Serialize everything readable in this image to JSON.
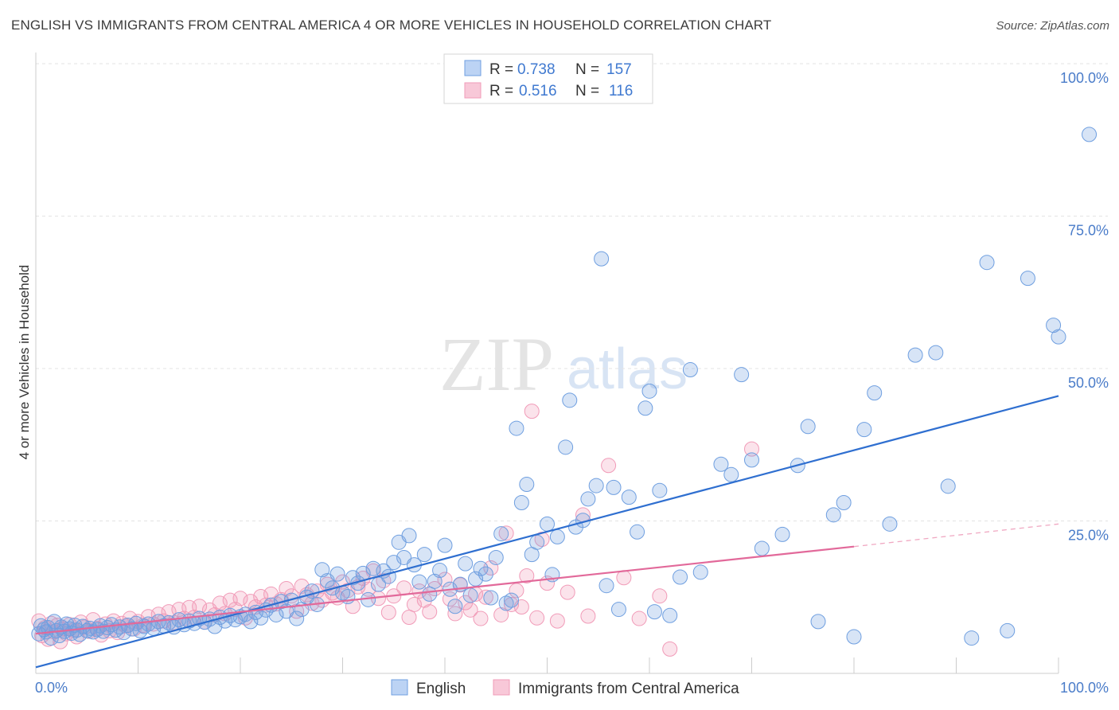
{
  "header": {
    "title": "ENGLISH VS IMMIGRANTS FROM CENTRAL AMERICA 4 OR MORE VEHICLES IN HOUSEHOLD CORRELATION CHART",
    "source": "Source: ZipAtlas.com"
  },
  "watermark": {
    "zip": "ZIP",
    "atlas": "atlas"
  },
  "chart_data": {
    "type": "scatter",
    "title": "ENGLISH VS IMMIGRANTS FROM CENTRAL AMERICA 4 OR MORE VEHICLES IN HOUSEHOLD CORRELATION CHART",
    "xlabel": "",
    "ylabel": "4 or more Vehicles in Household",
    "xlim": [
      0,
      100
    ],
    "ylim": [
      0,
      100
    ],
    "x_tick_labels": [
      "0.0%",
      "100.0%"
    ],
    "y_tick_labels": [
      "100.0%",
      "75.0%",
      "50.0%",
      "25.0%"
    ],
    "y_ticks": [
      100,
      75,
      50,
      25
    ],
    "grid": "dashed horizontal",
    "legend_position": "top-center",
    "colors": {
      "English": "#6f9fe0",
      "Immigrants from Central America": "#f19bb8",
      "english_line": "#2f6fd0",
      "immigrants_line": "#e2699a"
    },
    "stats": [
      {
        "r_label": "R =",
        "r": "0.738",
        "n_label": "N =",
        "n": "157"
      },
      {
        "r_label": "R =",
        "r": "0.516",
        "n_label": "N =",
        "n": "116"
      }
    ],
    "series": [
      {
        "name": "English",
        "trend": {
          "x": [
            0,
            100
          ],
          "y": [
            1.0,
            45.5
          ]
        },
        "points": [
          [
            0.3,
            6.5
          ],
          [
            0.5,
            7.8
          ],
          [
            0.8,
            7.2
          ],
          [
            1.0,
            6.8
          ],
          [
            1.2,
            7.5
          ],
          [
            1.5,
            5.8
          ],
          [
            1.8,
            8.5
          ],
          [
            2.0,
            7.0
          ],
          [
            2.3,
            6.2
          ],
          [
            2.5,
            7.6
          ],
          [
            2.8,
            6.9
          ],
          [
            3.0,
            8.1
          ],
          [
            3.3,
            7.3
          ],
          [
            3.5,
            6.6
          ],
          [
            3.8,
            7.9
          ],
          [
            4.0,
            7.1
          ],
          [
            4.3,
            6.4
          ],
          [
            4.6,
            7.7
          ],
          [
            5.0,
            7.0
          ],
          [
            5.3,
            7.4
          ],
          [
            5.6,
            6.8
          ],
          [
            6.0,
            7.2
          ],
          [
            6.3,
            7.8
          ],
          [
            6.6,
            6.9
          ],
          [
            7.0,
            7.5
          ],
          [
            7.4,
            8.0
          ],
          [
            7.8,
            7.1
          ],
          [
            8.2,
            7.6
          ],
          [
            8.6,
            6.7
          ],
          [
            9.0,
            7.9
          ],
          [
            9.4,
            7.3
          ],
          [
            9.8,
            8.2
          ],
          [
            10.2,
            7.0
          ],
          [
            10.6,
            7.7
          ],
          [
            11.0,
            8.1
          ],
          [
            11.5,
            7.4
          ],
          [
            12.0,
            8.5
          ],
          [
            12.5,
            7.8
          ],
          [
            13.0,
            8.3
          ],
          [
            13.5,
            7.6
          ],
          [
            14.0,
            8.8
          ],
          [
            14.5,
            8.0
          ],
          [
            15.0,
            8.6
          ],
          [
            15.5,
            8.2
          ],
          [
            16.0,
            9.0
          ],
          [
            16.5,
            8.4
          ],
          [
            17.0,
            8.9
          ],
          [
            17.5,
            7.7
          ],
          [
            18.0,
            9.2
          ],
          [
            18.5,
            8.6
          ],
          [
            19.0,
            9.5
          ],
          [
            19.5,
            8.8
          ],
          [
            20.0,
            9.3
          ],
          [
            20.5,
            9.7
          ],
          [
            21.0,
            8.5
          ],
          [
            21.5,
            10.0
          ],
          [
            22.0,
            9.1
          ],
          [
            22.5,
            10.4
          ],
          [
            23.0,
            11.2
          ],
          [
            23.5,
            9.6
          ],
          [
            24.0,
            11.8
          ],
          [
            24.5,
            10.2
          ],
          [
            25.0,
            12.0
          ],
          [
            25.5,
            9.0
          ],
          [
            26.0,
            10.5
          ],
          [
            26.5,
            12.5
          ],
          [
            27.0,
            13.5
          ],
          [
            27.5,
            11.3
          ],
          [
            28.0,
            17.0
          ],
          [
            28.5,
            15.2
          ],
          [
            29.0,
            14.0
          ],
          [
            29.5,
            16.3
          ],
          [
            30.0,
            13.2
          ],
          [
            30.5,
            12.6
          ],
          [
            31.0,
            15.7
          ],
          [
            31.5,
            14.8
          ],
          [
            32.0,
            16.4
          ],
          [
            32.5,
            12.1
          ],
          [
            33.0,
            17.2
          ],
          [
            33.5,
            14.6
          ],
          [
            34.0,
            16.8
          ],
          [
            34.5,
            15.9
          ],
          [
            35.0,
            18.2
          ],
          [
            35.5,
            21.5
          ],
          [
            36.0,
            19.0
          ],
          [
            36.5,
            22.6
          ],
          [
            37.0,
            17.8
          ],
          [
            37.5,
            15.0
          ],
          [
            38.0,
            19.5
          ],
          [
            38.5,
            13.0
          ],
          [
            39.0,
            15.1
          ],
          [
            39.5,
            16.9
          ],
          [
            40.0,
            21.0
          ],
          [
            40.5,
            13.8
          ],
          [
            41.0,
            11.0
          ],
          [
            41.5,
            14.6
          ],
          [
            42.0,
            18.0
          ],
          [
            42.5,
            12.8
          ],
          [
            43.0,
            15.5
          ],
          [
            43.5,
            17.2
          ],
          [
            44.0,
            16.3
          ],
          [
            44.5,
            12.4
          ],
          [
            45.0,
            19.0
          ],
          [
            45.5,
            22.9
          ],
          [
            46.0,
            11.5
          ],
          [
            46.5,
            12.0
          ],
          [
            47.0,
            40.2
          ],
          [
            47.5,
            28.0
          ],
          [
            48.0,
            31.0
          ],
          [
            48.5,
            19.5
          ],
          [
            49.0,
            21.5
          ],
          [
            50.0,
            24.5
          ],
          [
            50.5,
            16.2
          ],
          [
            51.0,
            22.4
          ],
          [
            51.8,
            37.1
          ],
          [
            52.2,
            44.8
          ],
          [
            52.8,
            24.0
          ],
          [
            53.5,
            25.1
          ],
          [
            54.0,
            28.6
          ],
          [
            54.8,
            30.8
          ],
          [
            55.3,
            68.0
          ],
          [
            55.8,
            14.4
          ],
          [
            56.5,
            30.5
          ],
          [
            57.0,
            10.5
          ],
          [
            58.0,
            28.9
          ],
          [
            58.8,
            23.2
          ],
          [
            59.6,
            43.5
          ],
          [
            60.0,
            46.3
          ],
          [
            60.5,
            10.1
          ],
          [
            61.0,
            30.0
          ],
          [
            62.0,
            9.5
          ],
          [
            63.0,
            15.8
          ],
          [
            64.0,
            49.8
          ],
          [
            65.0,
            16.6
          ],
          [
            67.0,
            34.3
          ],
          [
            68.0,
            32.6
          ],
          [
            69.0,
            49.0
          ],
          [
            70.0,
            35.0
          ],
          [
            71.0,
            20.5
          ],
          [
            73.0,
            22.8
          ],
          [
            74.5,
            34.1
          ],
          [
            75.5,
            40.5
          ],
          [
            76.5,
            8.5
          ],
          [
            78.0,
            26.0
          ],
          [
            79.0,
            28.0
          ],
          [
            80.0,
            6.0
          ],
          [
            81.0,
            40.0
          ],
          [
            82.0,
            46.0
          ],
          [
            83.5,
            24.5
          ],
          [
            86.0,
            52.2
          ],
          [
            88.0,
            52.6
          ],
          [
            89.2,
            30.7
          ],
          [
            91.5,
            5.8
          ],
          [
            93.0,
            67.4
          ],
          [
            95.0,
            7.0
          ],
          [
            97.0,
            64.8
          ],
          [
            99.5,
            57.1
          ],
          [
            100.0,
            55.2
          ],
          [
            103.0,
            88.4
          ]
        ]
      },
      {
        "name": "Immigrants from Central America",
        "trend": {
          "x": [
            0,
            80
          ],
          "y": [
            6.5,
            20.8
          ]
        },
        "trend_extension": {
          "x": [
            80,
            100
          ],
          "y": [
            20.8,
            24.5
          ]
        },
        "points": [
          [
            0.3,
            8.6
          ],
          [
            0.6,
            6.2
          ],
          [
            0.9,
            7.5
          ],
          [
            1.2,
            5.6
          ],
          [
            1.5,
            8.2
          ],
          [
            1.8,
            6.8
          ],
          [
            2.1,
            7.9
          ],
          [
            2.4,
            5.2
          ],
          [
            2.7,
            7.3
          ],
          [
            3.0,
            6.5
          ],
          [
            3.3,
            8.0
          ],
          [
            3.7,
            7.1
          ],
          [
            4.0,
            6.0
          ],
          [
            4.4,
            8.4
          ],
          [
            4.8,
            7.6
          ],
          [
            5.2,
            6.9
          ],
          [
            5.6,
            8.8
          ],
          [
            6.0,
            7.4
          ],
          [
            6.4,
            6.3
          ],
          [
            6.8,
            8.1
          ],
          [
            7.2,
            7.0
          ],
          [
            7.6,
            8.6
          ],
          [
            8.0,
            6.7
          ],
          [
            8.4,
            8.2
          ],
          [
            8.8,
            7.8
          ],
          [
            9.2,
            9.0
          ],
          [
            9.6,
            7.3
          ],
          [
            10.0,
            8.5
          ],
          [
            10.5,
            7.9
          ],
          [
            11.0,
            9.3
          ],
          [
            11.5,
            8.1
          ],
          [
            12.0,
            9.7
          ],
          [
            12.5,
            8.6
          ],
          [
            13.0,
            10.1
          ],
          [
            13.5,
            8.3
          ],
          [
            14.0,
            10.5
          ],
          [
            14.5,
            9.0
          ],
          [
            15.0,
            10.8
          ],
          [
            15.5,
            9.2
          ],
          [
            16.0,
            11.0
          ],
          [
            16.5,
            8.4
          ],
          [
            17.0,
            10.4
          ],
          [
            17.5,
            9.6
          ],
          [
            18.0,
            11.5
          ],
          [
            18.5,
            9.8
          ],
          [
            19.0,
            12.0
          ],
          [
            19.5,
            10.5
          ],
          [
            20.0,
            12.3
          ],
          [
            20.5,
            9.1
          ],
          [
            21.0,
            11.8
          ],
          [
            21.5,
            10.9
          ],
          [
            22.0,
            12.6
          ],
          [
            22.5,
            11.2
          ],
          [
            23.0,
            13.0
          ],
          [
            23.5,
            11.4
          ],
          [
            24.0,
            12.1
          ],
          [
            24.5,
            13.9
          ],
          [
            25.0,
            12.7
          ],
          [
            25.5,
            10.2
          ],
          [
            26.0,
            14.3
          ],
          [
            26.5,
            12.9
          ],
          [
            27.0,
            11.5
          ],
          [
            27.5,
            13.5
          ],
          [
            28.0,
            12.0
          ],
          [
            28.5,
            14.6
          ],
          [
            29.0,
            13.2
          ],
          [
            29.5,
            12.4
          ],
          [
            30.0,
            15.0
          ],
          [
            30.5,
            13.6
          ],
          [
            31.0,
            11.0
          ],
          [
            31.5,
            14.2
          ],
          [
            32.0,
            15.6
          ],
          [
            32.5,
            13.8
          ],
          [
            33.0,
            16.8
          ],
          [
            33.5,
            12.3
          ],
          [
            34.0,
            15.2
          ],
          [
            34.5,
            10.0
          ],
          [
            35.0,
            12.7
          ],
          [
            36.0,
            14.0
          ],
          [
            36.5,
            9.2
          ],
          [
            37.0,
            11.3
          ],
          [
            37.5,
            13.5
          ],
          [
            38.0,
            12.0
          ],
          [
            38.5,
            10.1
          ],
          [
            39.0,
            13.9
          ],
          [
            40.0,
            15.4
          ],
          [
            40.5,
            12.2
          ],
          [
            41.0,
            9.8
          ],
          [
            41.5,
            14.5
          ],
          [
            42.0,
            11.6
          ],
          [
            42.5,
            10.4
          ],
          [
            43.0,
            13.0
          ],
          [
            43.5,
            9.0
          ],
          [
            44.0,
            12.5
          ],
          [
            44.5,
            17.3
          ],
          [
            45.5,
            9.6
          ],
          [
            46.0,
            23.0
          ],
          [
            46.5,
            11.3
          ],
          [
            47.0,
            13.6
          ],
          [
            47.5,
            10.9
          ],
          [
            48.0,
            16.0
          ],
          [
            48.5,
            43.0
          ],
          [
            49.0,
            9.1
          ],
          [
            49.5,
            22.0
          ],
          [
            50.0,
            14.8
          ],
          [
            51.0,
            8.6
          ],
          [
            52.0,
            13.3
          ],
          [
            53.5,
            26.0
          ],
          [
            54.0,
            9.4
          ],
          [
            56.0,
            34.1
          ],
          [
            57.5,
            15.7
          ],
          [
            59.0,
            9.0
          ],
          [
            61.0,
            12.7
          ],
          [
            62.0,
            4.0
          ],
          [
            70.0,
            36.8
          ]
        ]
      }
    ]
  },
  "legend_bottom": {
    "english": "English",
    "immigrants": "Immigrants from Central America"
  }
}
